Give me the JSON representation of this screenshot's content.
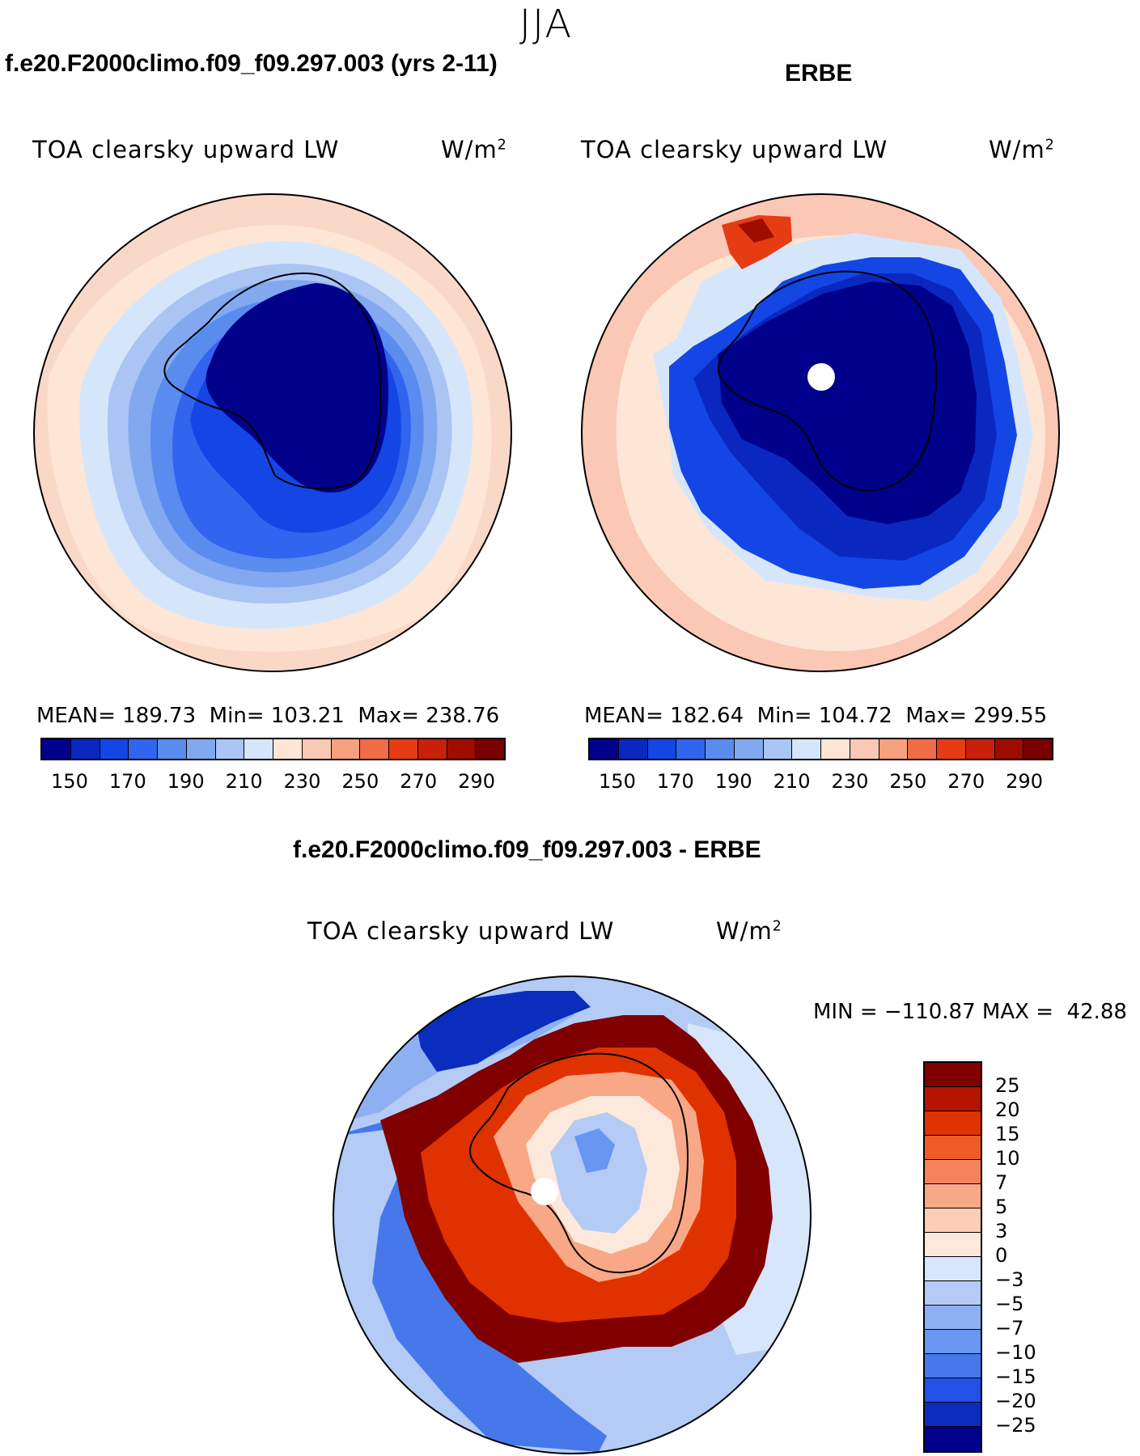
{
  "header": {
    "season": "JJA"
  },
  "model_panel": {
    "case_title": "f.e20.F2000climo.f09_f09.297.003 (yrs 2-11)",
    "variable": "TOA clearsky upward LW",
    "units_base": "W/m",
    "units_exp": "2",
    "mean_label": "MEAN=",
    "mean_value": "189.73",
    "min_label": "Min=",
    "min_value": "103.21",
    "max_label": "Max=",
    "max_value": "238.76"
  },
  "obs_panel": {
    "case_title": "ERBE",
    "variable": "TOA clearsky upward LW",
    "units_base": "W/m",
    "units_exp": "2",
    "mean_label": "MEAN=",
    "mean_value": "182.64",
    "min_label": "Min=",
    "min_value": "104.72",
    "max_label": "Max=",
    "max_value": "299.55"
  },
  "diff_panel": {
    "case_title": "f.e20.F2000climo.f09_f09.297.003 - ERBE",
    "variable": "TOA clearsky upward LW",
    "units_base": "W/m",
    "units_exp": "2",
    "min_label": "MIN =",
    "min_value": "−110.87",
    "max_label": "MAX =",
    "max_value": "42.88"
  },
  "abs_colorbar": {
    "colors": [
      "#00008b",
      "#0a28c0",
      "#1446e6",
      "#3264f0",
      "#5a8cf0",
      "#82a8f0",
      "#aac4f4",
      "#d6e6fa",
      "#fde6d6",
      "#fac8b4",
      "#f8a080",
      "#f06c46",
      "#e63c14",
      "#c8200a",
      "#9e0c00",
      "#780000"
    ],
    "tick_labels": [
      "150",
      "170",
      "190",
      "210",
      "230",
      "250",
      "270",
      "290"
    ]
  },
  "diff_colorbar": {
    "colors": [
      "#800000",
      "#b41400",
      "#e03200",
      "#ee5a28",
      "#f5825a",
      "#f8a886",
      "#fbcdb5",
      "#fde9dc",
      "#d7e6fa",
      "#b4cbf5",
      "#8eb0f3",
      "#6896f0",
      "#4678eb",
      "#2350e6",
      "#0a2dbe",
      "#00008c"
    ],
    "tick_labels": [
      "25",
      "20",
      "15",
      "10",
      "7",
      "5",
      "3",
      "0",
      "−3",
      "−5",
      "−7",
      "−10",
      "−15",
      "−20",
      "−25"
    ]
  }
}
